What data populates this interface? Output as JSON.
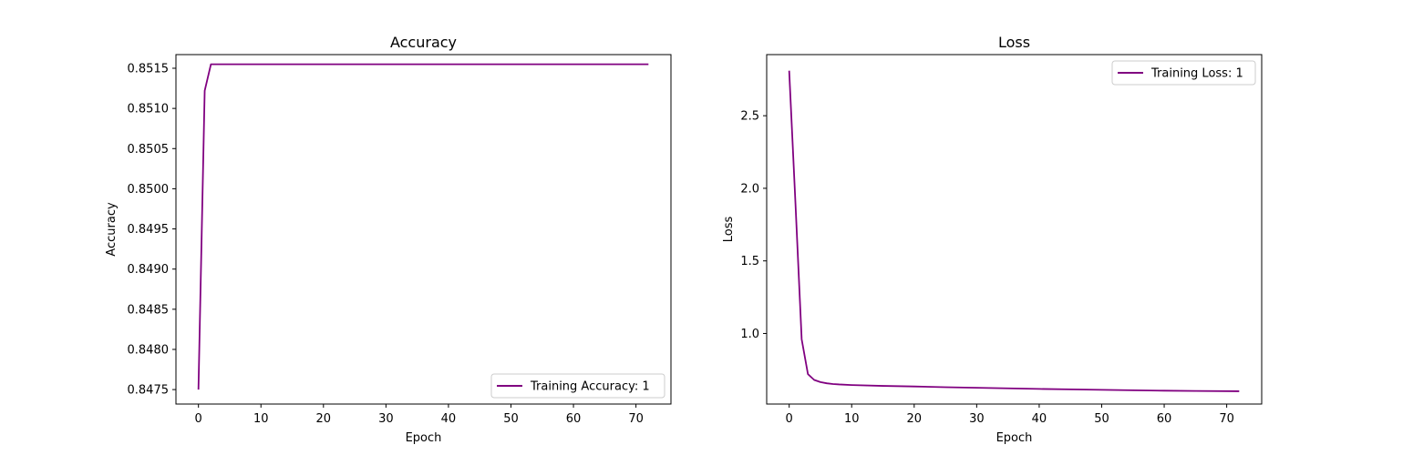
{
  "chart_data": [
    {
      "type": "line",
      "title": "Accuracy",
      "xlabel": "Epoch",
      "ylabel": "Accuracy",
      "xlim": [
        -3.6,
        75.6
      ],
      "ylim": [
        0.84732,
        0.85167
      ],
      "xticks": [
        0,
        10,
        20,
        30,
        40,
        50,
        60,
        70
      ],
      "yticks": [
        0.8475,
        0.848,
        0.8485,
        0.849,
        0.8495,
        0.85,
        0.8505,
        0.851,
        0.8515
      ],
      "ytick_labels": [
        "0.8475",
        "0.8480",
        "0.8485",
        "0.8490",
        "0.8495",
        "0.8500",
        "0.8505",
        "0.8510",
        "0.8515"
      ],
      "legend_position": "lower-right",
      "color": "#800080",
      "series": [
        {
          "name": "Training Accuracy: 1",
          "x": [
            0,
            1,
            2,
            72
          ],
          "y": [
            0.8475,
            0.85122,
            0.85155,
            0.85155
          ]
        }
      ]
    },
    {
      "type": "line",
      "title": "Loss",
      "xlabel": "Epoch",
      "ylabel": "Loss",
      "xlim": [
        -3.6,
        75.6
      ],
      "ylim": [
        0.514,
        2.921
      ],
      "xticks": [
        0,
        10,
        20,
        30,
        40,
        50,
        60,
        70
      ],
      "yticks": [
        1.0,
        1.5,
        2.0,
        2.5
      ],
      "ytick_labels": [
        "1.0",
        "1.5",
        "2.0",
        "2.5"
      ],
      "legend_position": "upper-right",
      "color": "#800080",
      "series": [
        {
          "name": "Training Loss: 1",
          "x": [
            0,
            1,
            2,
            3,
            4,
            5,
            6,
            7,
            8,
            10,
            15,
            20,
            25,
            30,
            35,
            40,
            45,
            50,
            55,
            60,
            65,
            72
          ],
          "y": [
            2.81,
            1.9,
            0.96,
            0.72,
            0.68,
            0.665,
            0.657,
            0.652,
            0.649,
            0.645,
            0.639,
            0.635,
            0.63,
            0.626,
            0.622,
            0.618,
            0.615,
            0.612,
            0.609,
            0.606,
            0.604,
            0.602
          ]
        }
      ]
    }
  ]
}
